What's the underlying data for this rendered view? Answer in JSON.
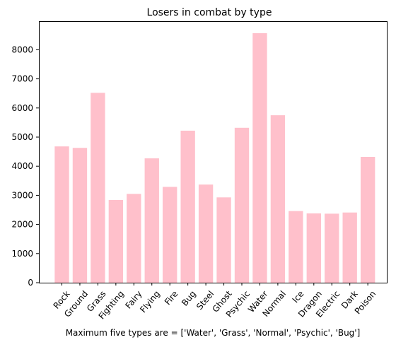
{
  "chart_data": {
    "type": "bar",
    "title": "Losers in combat by type",
    "xlabel": "Maximum five types are = ['Water', 'Grass', 'Normal', 'Psychic', 'Bug']",
    "ylabel": "",
    "categories": [
      "Rock",
      "Ground",
      "Grass",
      "Fighting",
      "Fairy",
      "Flying",
      "Fire",
      "Bug",
      "Steel",
      "Ghost",
      "Psychic",
      "Water",
      "Normal",
      "Ice",
      "Dragon",
      "Electric",
      "Dark",
      "Poison"
    ],
    "values": [
      4680,
      4630,
      6520,
      2840,
      3050,
      4270,
      3290,
      5220,
      3370,
      2930,
      5320,
      8570,
      5750,
      2460,
      2380,
      2370,
      2410,
      4320
    ],
    "yticks": [
      0,
      1000,
      2000,
      3000,
      4000,
      5000,
      6000,
      7000,
      8000
    ],
    "ylim": [
      0,
      8980
    ],
    "grid": false,
    "bar_color": "#ffc0cb",
    "tick_rotation_deg": -50
  }
}
